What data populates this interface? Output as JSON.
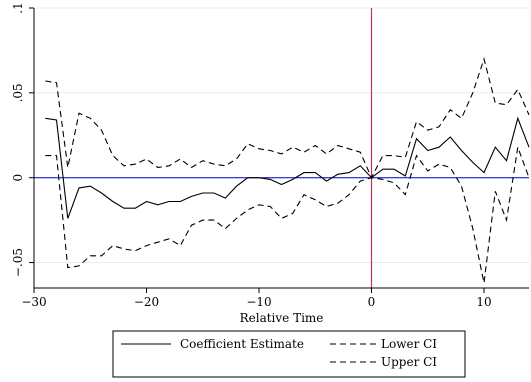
{
  "chart_data": {
    "type": "line",
    "title": "",
    "xlabel": "Relative Time",
    "ylabel": "",
    "xlim": [
      -30,
      14
    ],
    "ylim": [
      -0.065,
      0.1
    ],
    "x_ticks": [
      -30,
      -20,
      -10,
      0,
      10
    ],
    "x_tick_labels": [
      "−30",
      "−20",
      "−10",
      "0",
      "10"
    ],
    "y_ticks": [
      -0.05,
      0,
      0.05,
      0.1
    ],
    "y_tick_labels": [
      "−.05",
      "0",
      ".05",
      ".1"
    ],
    "grid": true,
    "reference_lines": [
      {
        "axis": "y",
        "value": 0,
        "color": "#0000cc"
      },
      {
        "axis": "x",
        "value": 0,
        "color": "#c0325a"
      }
    ],
    "legend_position": "bottom",
    "x": [
      -29,
      -28,
      -27,
      -26,
      -25,
      -24,
      -23,
      -22,
      -21,
      -20,
      -19,
      -18,
      -17,
      -16,
      -15,
      -14,
      -13,
      -12,
      -11,
      -10,
      -9,
      -8,
      -7,
      -6,
      -5,
      -4,
      -3,
      -2,
      -1,
      0,
      1,
      2,
      3,
      4,
      5,
      6,
      7,
      8,
      9,
      10,
      11,
      12,
      13,
      14
    ],
    "series": [
      {
        "name": "Coefficient Estimate",
        "style": "solid",
        "values": [
          0.035,
          0.034,
          -0.024,
          -0.006,
          -0.005,
          -0.009,
          -0.014,
          -0.018,
          -0.018,
          -0.014,
          -0.016,
          -0.014,
          -0.014,
          -0.011,
          -0.009,
          -0.009,
          -0.012,
          -0.005,
          0.0,
          0.0,
          -0.001,
          -0.004,
          -0.001,
          0.003,
          0.003,
          -0.002,
          0.002,
          0.003,
          0.007,
          0.0,
          0.005,
          0.005,
          0.001,
          0.023,
          0.016,
          0.018,
          0.024,
          0.016,
          0.009,
          0.003,
          0.018,
          0.01,
          0.035,
          0.018
        ]
      },
      {
        "name": "Lower CI",
        "style": "dashed",
        "values": [
          0.013,
          0.013,
          -0.053,
          -0.052,
          -0.046,
          -0.046,
          -0.04,
          -0.042,
          -0.043,
          -0.04,
          -0.038,
          -0.036,
          -0.04,
          -0.028,
          -0.025,
          -0.025,
          -0.03,
          -0.024,
          -0.019,
          -0.016,
          -0.017,
          -0.024,
          -0.021,
          -0.01,
          -0.013,
          -0.017,
          -0.015,
          -0.01,
          -0.002,
          0.0,
          -0.001,
          -0.003,
          -0.01,
          0.013,
          0.004,
          0.008,
          0.006,
          -0.005,
          -0.03,
          -0.062,
          -0.008,
          -0.025,
          0.018,
          0.0
        ]
      },
      {
        "name": "Upper CI",
        "style": "dashed",
        "values": [
          0.057,
          0.056,
          0.006,
          0.038,
          0.035,
          0.028,
          0.013,
          0.007,
          0.008,
          0.011,
          0.006,
          0.007,
          0.011,
          0.006,
          0.01,
          0.008,
          0.007,
          0.011,
          0.02,
          0.017,
          0.016,
          0.014,
          0.018,
          0.015,
          0.019,
          0.014,
          0.019,
          0.017,
          0.015,
          0.0,
          0.013,
          0.013,
          0.012,
          0.033,
          0.028,
          0.03,
          0.04,
          0.035,
          0.05,
          0.07,
          0.044,
          0.043,
          0.052,
          0.037
        ]
      }
    ]
  }
}
